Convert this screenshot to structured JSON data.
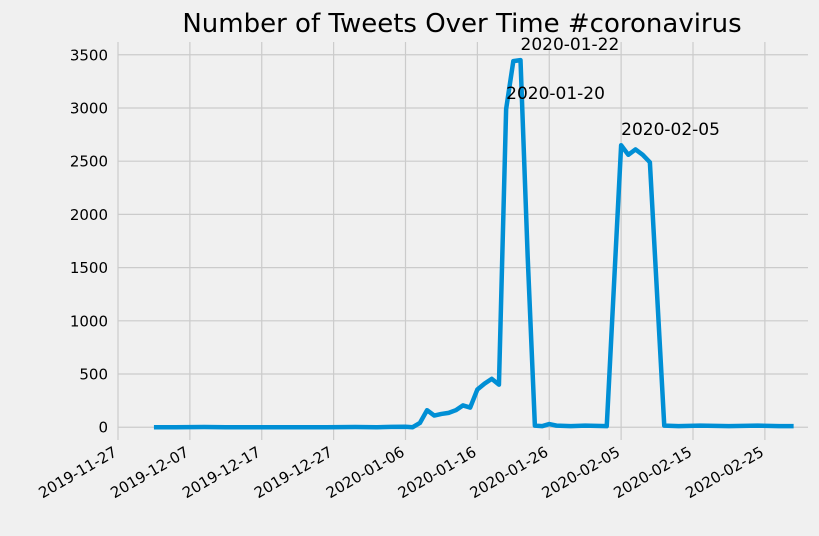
{
  "chart_data": {
    "type": "line",
    "title": "Number of Tweets Over Time #coronavirus",
    "xlabel": "",
    "ylabel": "",
    "grid": true,
    "xlim": [
      "2019-11-27",
      "2020-03-02"
    ],
    "ylim": [
      -120,
      3620
    ],
    "x_ticks": [
      "2019-11-27",
      "2019-12-07",
      "2019-12-17",
      "2019-12-27",
      "2020-01-06",
      "2020-01-16",
      "2020-01-26",
      "2020-02-05",
      "2020-02-15",
      "2020-02-25"
    ],
    "y_ticks": [
      0,
      500,
      1000,
      1500,
      2000,
      2500,
      3000,
      3500
    ],
    "line_color": "#008fd5",
    "series": [
      {
        "points": [
          [
            "2019-12-02",
            0
          ],
          [
            "2019-12-05",
            0
          ],
          [
            "2019-12-09",
            2
          ],
          [
            "2019-12-12",
            0
          ],
          [
            "2019-12-16",
            0
          ],
          [
            "2019-12-20",
            0
          ],
          [
            "2019-12-26",
            0
          ],
          [
            "2019-12-30",
            2
          ],
          [
            "2020-01-02",
            0
          ],
          [
            "2020-01-04",
            3
          ],
          [
            "2020-01-06",
            5
          ],
          [
            "2020-01-07",
            0
          ],
          [
            "2020-01-08",
            40
          ],
          [
            "2020-01-09",
            160
          ],
          [
            "2020-01-10",
            110
          ],
          [
            "2020-01-11",
            125
          ],
          [
            "2020-01-12",
            135
          ],
          [
            "2020-01-13",
            160
          ],
          [
            "2020-01-14",
            205
          ],
          [
            "2020-01-15",
            185
          ],
          [
            "2020-01-16",
            355
          ],
          [
            "2020-01-17",
            410
          ],
          [
            "2020-01-18",
            455
          ],
          [
            "2020-01-19",
            400
          ],
          [
            "2020-01-20",
            2990
          ],
          [
            "2020-01-21",
            3440
          ],
          [
            "2020-01-22",
            3450
          ],
          [
            "2020-01-23",
            1600
          ],
          [
            "2020-01-24",
            15
          ],
          [
            "2020-01-25",
            10
          ],
          [
            "2020-01-26",
            30
          ],
          [
            "2020-01-27",
            15
          ],
          [
            "2020-01-29",
            10
          ],
          [
            "2020-01-31",
            15
          ],
          [
            "2020-02-03",
            10
          ],
          [
            "2020-02-05",
            2650
          ],
          [
            "2020-02-06",
            2560
          ],
          [
            "2020-02-07",
            2610
          ],
          [
            "2020-02-08",
            2560
          ],
          [
            "2020-02-09",
            2490
          ],
          [
            "2020-02-11",
            15
          ],
          [
            "2020-02-13",
            10
          ],
          [
            "2020-02-16",
            15
          ],
          [
            "2020-02-20",
            10
          ],
          [
            "2020-02-24",
            15
          ],
          [
            "2020-02-27",
            10
          ],
          [
            "2020-02-29",
            10
          ]
        ]
      }
    ],
    "annotations": [
      {
        "text": "2020-01-22",
        "x": "2020-01-22",
        "y": 3450
      },
      {
        "text": "2020-01-20",
        "x": "2020-01-20",
        "y": 2990
      },
      {
        "text": "2020-02-05",
        "x": "2020-02-05",
        "y": 2650
      }
    ]
  }
}
